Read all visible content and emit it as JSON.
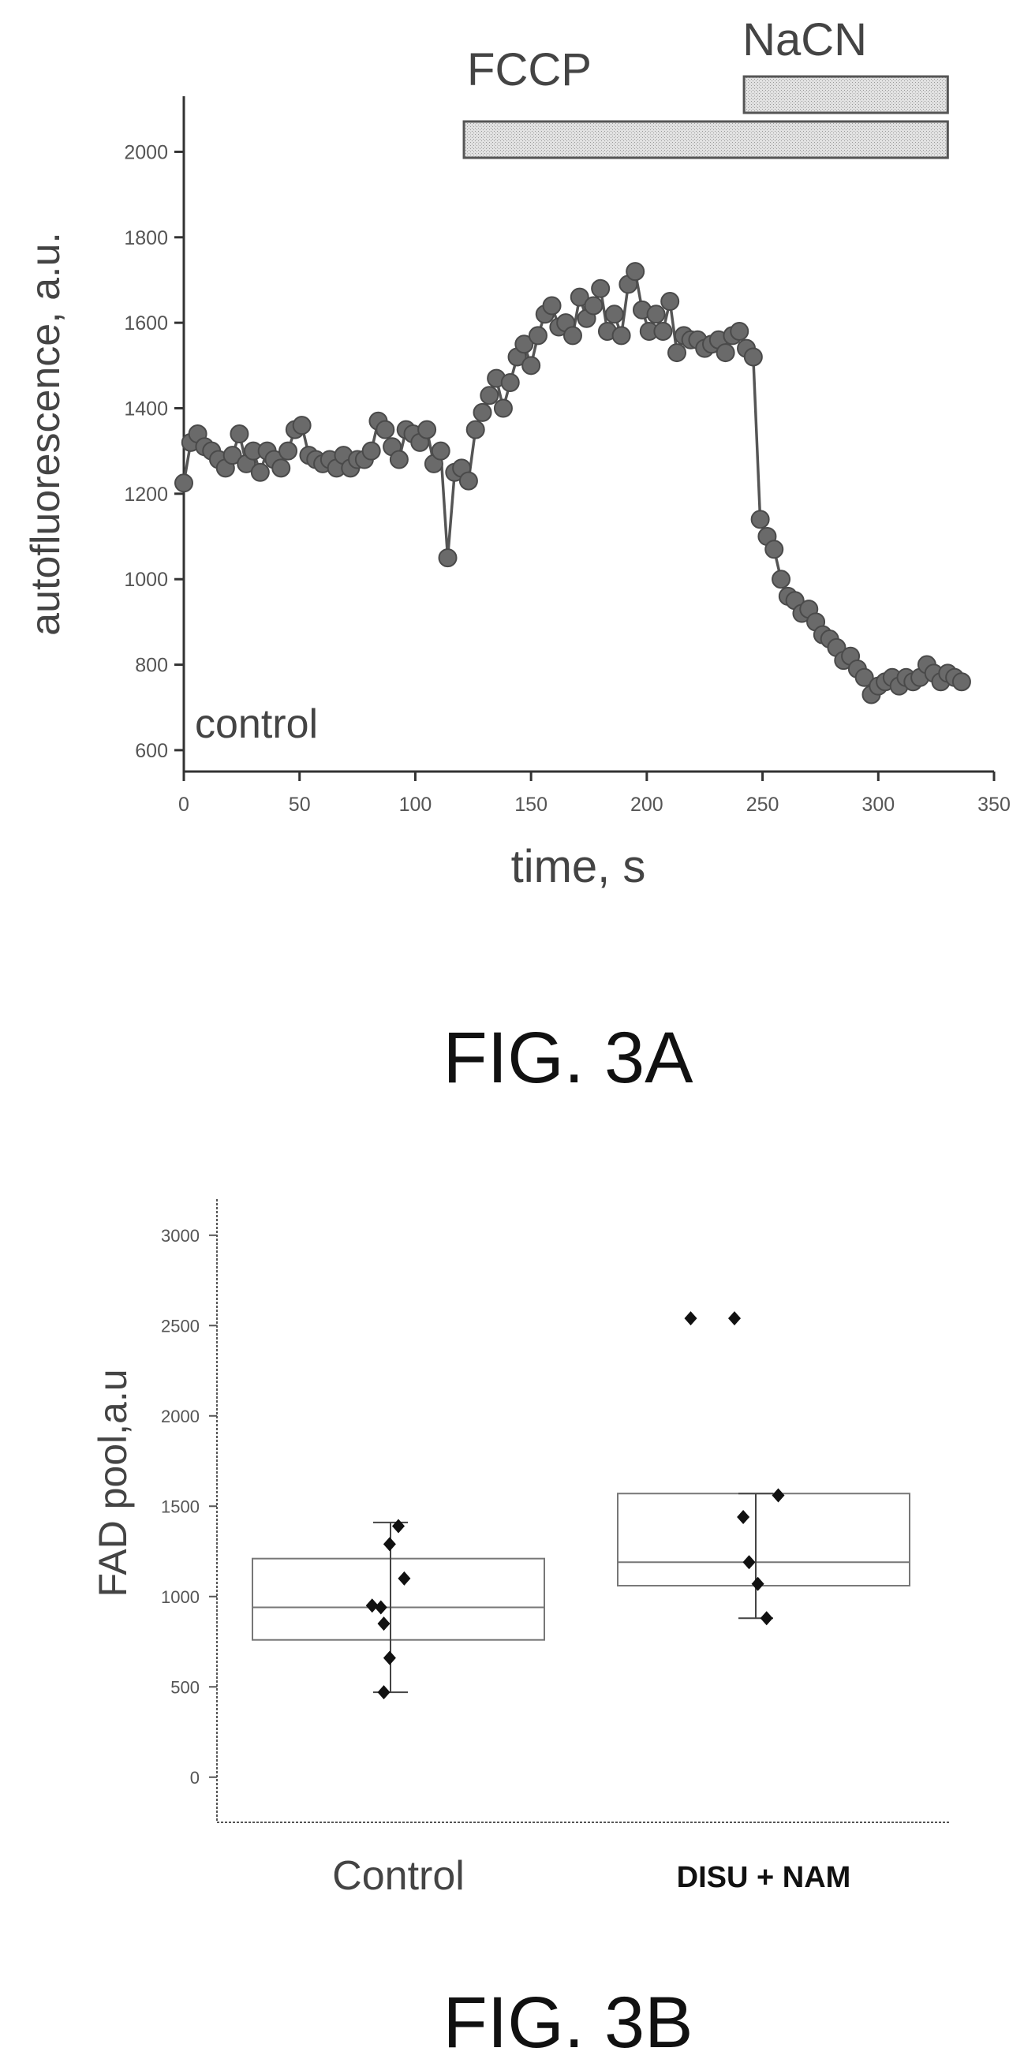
{
  "chart_data": [
    {
      "type": "line",
      "figure_label": "FIG. 3A",
      "xlabel": "time, s",
      "ylabel": "autofluorescence, a.u.",
      "xlim": [
        0,
        350
      ],
      "ylim": [
        550,
        2130
      ],
      "xticks": [
        "0",
        "50",
        "100",
        "150",
        "200",
        "250",
        "300",
        "350"
      ],
      "yticks": [
        "600",
        "800",
        "1000",
        "1200",
        "1400",
        "1600",
        "1800",
        "2000"
      ],
      "annotation": "control",
      "treatments": [
        {
          "label": "FCCP",
          "start": 121,
          "end": 330
        },
        {
          "label": "NaCN",
          "start": 242,
          "end": 330
        }
      ],
      "series": [
        {
          "x": [
            0,
            3,
            6,
            9,
            12,
            15,
            18,
            21,
            24,
            27,
            30,
            33,
            36,
            39,
            42,
            45,
            48,
            51,
            54,
            57,
            60,
            63,
            66,
            69,
            72,
            75,
            78,
            81,
            84,
            87,
            90,
            93,
            96,
            99,
            102,
            105,
            108,
            111,
            114,
            117,
            120,
            123,
            126,
            129,
            132,
            135,
            138,
            141,
            144,
            147,
            150,
            153,
            156,
            159,
            162,
            165,
            168,
            171,
            174,
            177,
            180,
            183,
            186,
            189,
            192,
            195,
            198,
            201,
            204,
            207,
            210,
            213,
            216,
            219,
            222,
            225,
            228,
            231,
            234,
            237,
            240,
            243,
            246,
            249,
            252,
            255,
            258,
            261,
            264,
            267,
            270,
            273,
            276,
            279,
            282,
            285,
            288,
            291,
            294,
            297,
            300,
            303,
            306,
            309,
            312,
            315,
            318,
            321,
            324,
            327,
            330,
            333,
            336
          ],
          "y": [
            1225,
            1320,
            1340,
            1310,
            1300,
            1280,
            1260,
            1290,
            1340,
            1270,
            1300,
            1250,
            1300,
            1280,
            1260,
            1300,
            1350,
            1360,
            1290,
            1280,
            1270,
            1280,
            1260,
            1290,
            1260,
            1280,
            1280,
            1300,
            1370,
            1350,
            1310,
            1280,
            1350,
            1340,
            1320,
            1350,
            1270,
            1300,
            1050,
            1250,
            1260,
            1230,
            1350,
            1390,
            1430,
            1470,
            1400,
            1460,
            1520,
            1550,
            1500,
            1570,
            1620,
            1640,
            1590,
            1600,
            1570,
            1660,
            1610,
            1640,
            1680,
            1580,
            1620,
            1570,
            1690,
            1720,
            1630,
            1580,
            1620,
            1580,
            1650,
            1530,
            1570,
            1560,
            1560,
            1540,
            1550,
            1560,
            1530,
            1570,
            1580,
            1540,
            1520,
            1140,
            1100,
            1070,
            1000,
            960,
            950,
            920,
            930,
            900,
            870,
            860,
            840,
            810,
            820,
            790,
            770,
            730,
            750,
            760,
            770,
            750,
            770,
            760,
            770,
            800,
            780,
            760,
            780,
            770,
            760
          ]
        }
      ]
    },
    {
      "type": "box",
      "figure_label": "FIG. 3B",
      "ylabel": "FAD pool,a.u",
      "ylim": [
        -250,
        3200
      ],
      "yticks": [
        "0",
        "500",
        "1000",
        "1500",
        "2000",
        "2500",
        "3000"
      ],
      "categories": [
        "Control",
        "DISU + NAM"
      ],
      "boxes": [
        {
          "category": "Control",
          "q1": 760,
          "median": 940,
          "q3": 1210,
          "whisker_low": 470,
          "whisker_high": 1410,
          "points": [
            {
              "dx": 0.0,
              "y": 1390
            },
            {
              "dx": -0.03,
              "y": 1290
            },
            {
              "dx": 0.02,
              "y": 1100
            },
            {
              "dx": -0.09,
              "y": 950
            },
            {
              "dx": -0.06,
              "y": 940
            },
            {
              "dx": -0.05,
              "y": 850
            },
            {
              "dx": -0.03,
              "y": 660
            },
            {
              "dx": -0.05,
              "y": 470
            }
          ]
        },
        {
          "category": "DISU + NAM",
          "q1": 1060,
          "median": 1190,
          "q3": 1570,
          "whisker_low": 880,
          "whisker_high": 1570,
          "points": [
            {
              "dx": -0.25,
              "y": 2540
            },
            {
              "dx": -0.1,
              "y": 2540
            },
            {
              "dx": 0.05,
              "y": 1560
            },
            {
              "dx": -0.07,
              "y": 1440
            },
            {
              "dx": -0.05,
              "y": 1190
            },
            {
              "dx": -0.02,
              "y": 1070
            },
            {
              "dx": 0.01,
              "y": 880
            }
          ]
        }
      ]
    }
  ]
}
